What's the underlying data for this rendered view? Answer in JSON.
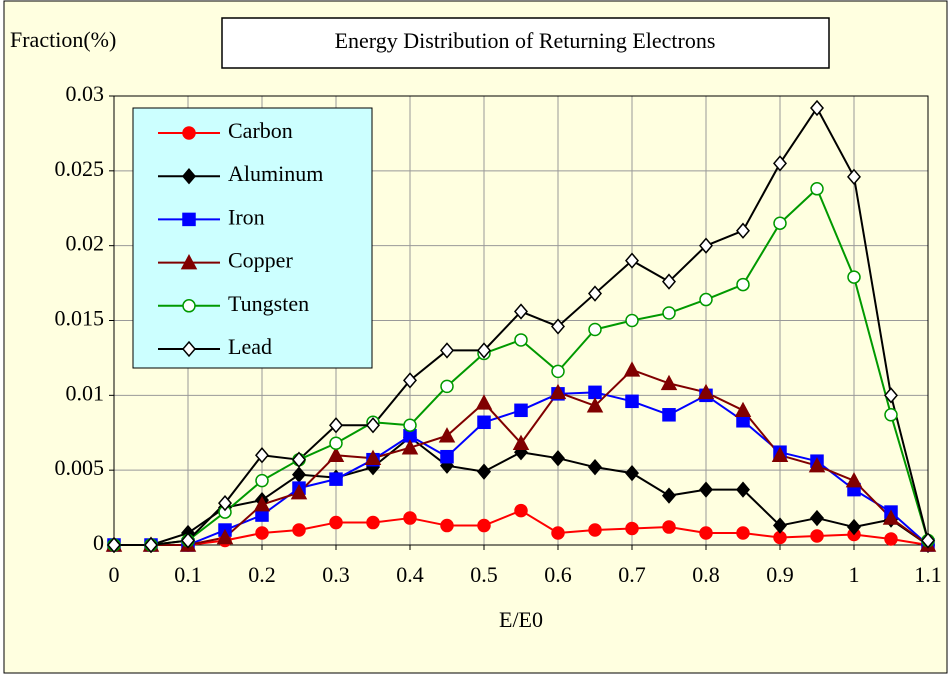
{
  "chart_data": {
    "type": "line",
    "title": "Energy Distribution of Returning Electrons",
    "y_label": "Fraction(%)",
    "x_label": "E/E0",
    "x": [
      0,
      0.05,
      0.1,
      0.15,
      0.2,
      0.25,
      0.3,
      0.35,
      0.4,
      0.45,
      0.5,
      0.55,
      0.6,
      0.65,
      0.7,
      0.75,
      0.8,
      0.85,
      0.9,
      0.95,
      1,
      1.05,
      1.1
    ],
    "xlim": [
      0,
      1.1
    ],
    "xticks": [
      0,
      0.1,
      0.2,
      0.3,
      0.4,
      0.5,
      0.6,
      0.7,
      0.8,
      0.9,
      1,
      1.1
    ],
    "ylim": [
      0,
      0.03
    ],
    "yticks": [
      0,
      0.005,
      0.01,
      0.015,
      0.02,
      0.025,
      0.03
    ],
    "grid": true,
    "legend": "upper left",
    "series": [
      {
        "name": "Carbon",
        "color": "#ff0000",
        "marker": "circle",
        "filled": true,
        "values": [
          0,
          0,
          0,
          0.0003,
          0.0008,
          0.001,
          0.0015,
          0.0015,
          0.0018,
          0.0013,
          0.0013,
          0.0023,
          0.0008,
          0.001,
          0.0011,
          0.0012,
          0.0008,
          0.0008,
          0.0005,
          0.0006,
          0.0007,
          0.0004,
          0
        ]
      },
      {
        "name": "Aluminum",
        "color": "#000000",
        "marker": "diamond",
        "filled": true,
        "values": [
          0,
          0,
          0.0008,
          0.0025,
          0.003,
          0.0047,
          0.0045,
          0.0052,
          0.0072,
          0.0053,
          0.0049,
          0.0062,
          0.0058,
          0.0052,
          0.0048,
          0.0033,
          0.0037,
          0.0037,
          0.0013,
          0.0018,
          0.0012,
          0.0017,
          0
        ]
      },
      {
        "name": "Iron",
        "color": "#0000ff",
        "marker": "square",
        "filled": true,
        "values": [
          0,
          0,
          0,
          0.001,
          0.002,
          0.0038,
          0.0044,
          0.0057,
          0.0073,
          0.0059,
          0.0082,
          0.009,
          0.0101,
          0.0102,
          0.0096,
          0.0087,
          0.01,
          0.0083,
          0.0062,
          0.0056,
          0.0037,
          0.0022,
          0
        ]
      },
      {
        "name": "Copper",
        "color": "#800000",
        "marker": "triangle",
        "filled": true,
        "values": [
          0,
          0,
          0,
          0.0005,
          0.0027,
          0.0035,
          0.006,
          0.0058,
          0.0065,
          0.0073,
          0.0095,
          0.0068,
          0.0102,
          0.0093,
          0.0117,
          0.0108,
          0.0102,
          0.009,
          0.006,
          0.0053,
          0.0043,
          0.0018,
          0
        ]
      },
      {
        "name": "Tungsten",
        "color": "#009900",
        "marker": "circle",
        "filled": false,
        "values": [
          0,
          0,
          0.0003,
          0.0022,
          0.0043,
          0.0057,
          0.0068,
          0.0082,
          0.008,
          0.0106,
          0.0128,
          0.0137,
          0.0116,
          0.0144,
          0.015,
          0.0155,
          0.0164,
          0.0174,
          0.0215,
          0.0238,
          0.0179,
          0.0087,
          0.0003
        ]
      },
      {
        "name": "Lead",
        "color": "#000000",
        "marker": "diamond",
        "filled": false,
        "values": [
          0,
          0,
          0.0003,
          0.0028,
          0.006,
          0.0057,
          0.008,
          0.008,
          0.011,
          0.013,
          0.013,
          0.0156,
          0.0146,
          0.0168,
          0.019,
          0.0176,
          0.02,
          0.021,
          0.0255,
          0.0292,
          0.0246,
          0.01,
          0.0003
        ]
      }
    ]
  }
}
